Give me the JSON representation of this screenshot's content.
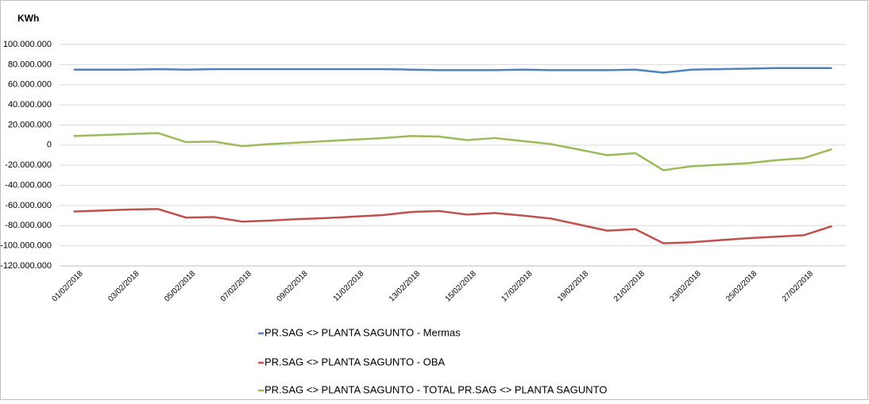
{
  "chart_data": {
    "type": "line",
    "title": "KWh",
    "categories": [
      "01/02/2018",
      null,
      "03/02/2018",
      null,
      "05/02/2018",
      null,
      "07/02/2018",
      null,
      "09/02/2018",
      null,
      "11/02/2018",
      null,
      "13/02/2018",
      null,
      "15/02/2018",
      null,
      "17/02/2018",
      null,
      "19/02/2018",
      null,
      "21/02/2018",
      null,
      "23/02/2018",
      null,
      "25/02/2018",
      null,
      "27/02/2018",
      null
    ],
    "series": [
      {
        "name": "PR.SAG <> PLANTA SAGUNTO - Mermas",
        "color": "#4f81bd",
        "values": [
          75000000,
          75000000,
          75000000,
          75500000,
          75000000,
          75500000,
          75500000,
          75500000,
          75500000,
          75500000,
          75500000,
          75500000,
          75000000,
          74500000,
          74500000,
          74500000,
          75000000,
          74500000,
          74500000,
          74500000,
          75000000,
          72000000,
          75000000,
          75500000,
          76000000,
          76500000,
          76500000,
          76500000
        ]
      },
      {
        "name": "PR.SAG <> PLANTA SAGUNTO - OBA",
        "color": "#c0504d",
        "values": [
          -66000000,
          -65000000,
          -64000000,
          -63500000,
          -72000000,
          -71500000,
          -76000000,
          -75000000,
          -73500000,
          -72500000,
          -71000000,
          -69500000,
          -66500000,
          -65500000,
          -69000000,
          -67500000,
          -70000000,
          -73000000,
          -79000000,
          -85000000,
          -83500000,
          -97500000,
          -96500000,
          -94500000,
          -92500000,
          -91000000,
          -89500000,
          -80500000
        ]
      },
      {
        "name": "PR.SAG <> PLANTA SAGUNTO - TOTAL PR.SAG <> PLANTA SAGUNTO",
        "color": "#9bbb59",
        "values": [
          9000000,
          10000000,
          11000000,
          12000000,
          3000000,
          3500000,
          -1000000,
          1000000,
          2500000,
          4000000,
          5500000,
          7000000,
          9000000,
          8500000,
          5000000,
          7000000,
          4000000,
          1000000,
          -4500000,
          -10000000,
          -8000000,
          -25000000,
          -21000000,
          -19500000,
          -18000000,
          -15000000,
          -13000000,
          -4000000
        ]
      }
    ],
    "ylim": [
      -120000000,
      100000000
    ],
    "yticks": [
      {
        "value": -120000000,
        "label": "-120.000.000"
      },
      {
        "value": -100000000,
        "label": "-100.000.000"
      },
      {
        "value": -80000000,
        "label": "-80.000.000"
      },
      {
        "value": -60000000,
        "label": "-60.000.000"
      },
      {
        "value": -40000000,
        "label": "-40.000.000"
      },
      {
        "value": -20000000,
        "label": "-20.000.000"
      },
      0,
      {
        "value": 20000000,
        "label": "20.000.000"
      },
      {
        "value": 40000000,
        "label": "40.000.000"
      },
      {
        "value": 60000000,
        "label": "60.000.000"
      },
      {
        "value": 80000000,
        "label": "80.000.000"
      },
      {
        "value": 100000000,
        "label": "100.000.000"
      }
    ],
    "grid": true
  }
}
